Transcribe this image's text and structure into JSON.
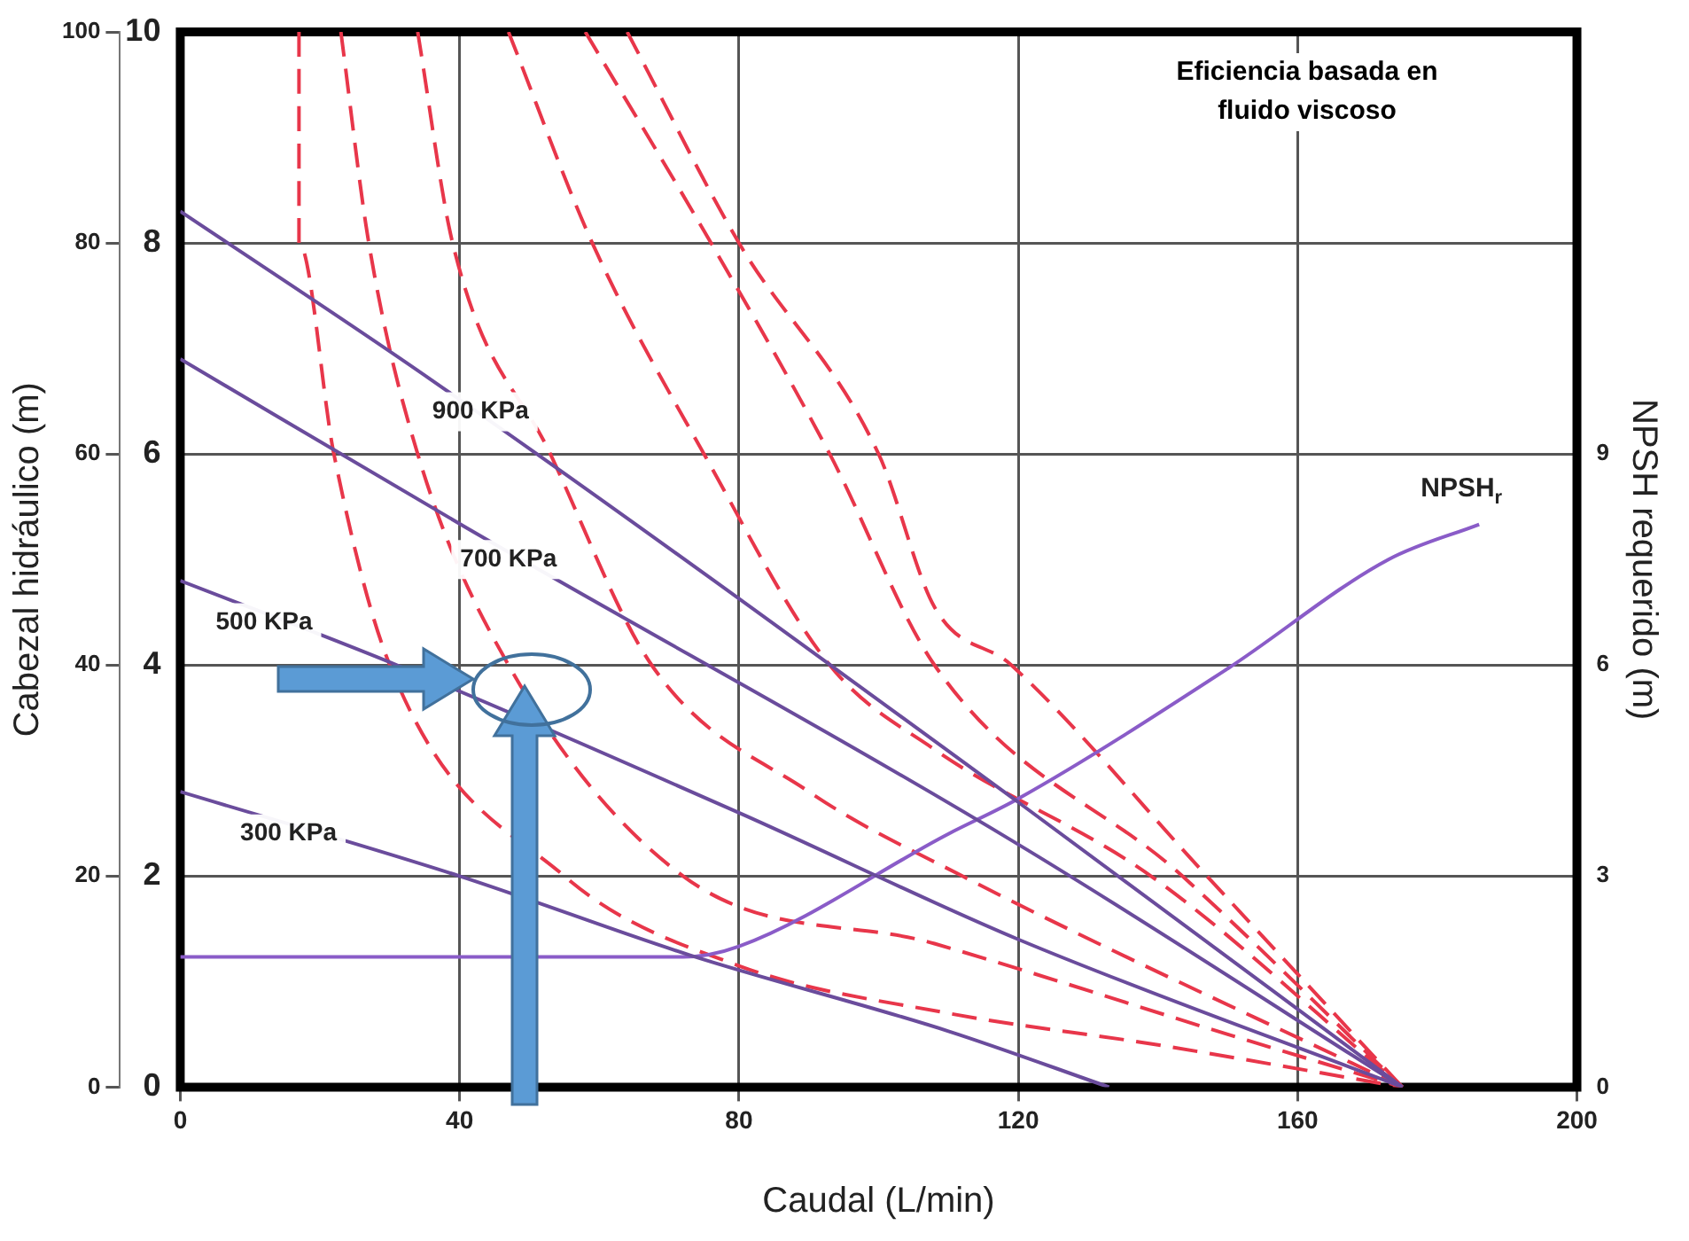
{
  "chart_data": {
    "type": "line",
    "xlabel": "Caudal (L/min)",
    "ylabel": "Cabezal hidráulico (m)",
    "y3label": "NPSH requerido (m)",
    "xlim": [
      0,
      200
    ],
    "xticks": [
      0,
      40,
      80,
      120,
      160,
      200
    ],
    "ylim": [
      0,
      100
    ],
    "yticks": [
      0,
      20,
      40,
      60,
      80,
      100
    ],
    "y2lim": [
      0,
      10
    ],
    "y2ticks": [
      0,
      2,
      4,
      6,
      8,
      10
    ],
    "y3lim": [
      0,
      15
    ],
    "y3ticks": [
      0,
      3,
      6,
      9
    ],
    "grid": true,
    "legend": false,
    "marker": "none",
    "series": [
      {
        "color": "#6a4c9c",
        "line_style": "solid",
        "x": [
          0,
          36,
          120,
          175
        ],
        "values": [
          83,
          67,
          27,
          0
        ]
      },
      {
        "color": "#6a4c9c",
        "line_style": "solid",
        "x": [
          0,
          41,
          120,
          175
        ],
        "values": [
          69,
          53,
          23,
          0
        ]
      },
      {
        "color": "#6a4c9c",
        "line_style": "solid",
        "x": [
          0,
          31,
          80,
          120,
          175
        ],
        "values": [
          48,
          40,
          26,
          14,
          0
        ]
      },
      {
        "color": "#6a4c9c",
        "line_style": "solid",
        "x": [
          0,
          40,
          73,
          110,
          133
        ],
        "values": [
          28,
          20,
          12.5,
          5.3,
          0
        ]
      },
      {
        "name": "NPSH$_{r}$",
        "color": "#8a5cc8",
        "line_style": "solid",
        "axis": "y3",
        "x": [
          0,
          72,
          80,
          110,
          120,
          150,
          173,
          186
        ],
        "values": [
          1.85,
          1.85,
          2.0,
          3.6,
          4.1,
          5.95,
          7.5,
          8.0
        ]
      },
      {
        "color": "#e8364a",
        "line_style": "dashed",
        "x": [
          17,
          17,
          22,
          30,
          55,
          80,
          110,
          140,
          175
        ],
        "values": [
          100,
          80,
          60,
          40,
          20,
          11.5,
          7,
          4,
          0
        ]
      },
      {
        "color": "#e8364a",
        "line_style": "dashed",
        "x": [
          23,
          27,
          34,
          47,
          72,
          108,
          150,
          175
        ],
        "values": [
          100,
          80,
          60,
          40,
          20,
          13.6,
          5,
          0
        ]
      },
      {
        "color": "#e8364a",
        "line_style": "dashed",
        "x": [
          34,
          39,
          53,
          67.5,
          90,
          112,
          175
        ],
        "values": [
          100,
          80,
          60,
          40,
          28,
          20,
          0
        ]
      },
      {
        "color": "#e8364a",
        "line_style": "dashed",
        "x": [
          47,
          59,
          75,
          93,
          108,
          139,
          175
        ],
        "values": [
          100,
          80,
          60,
          40,
          32,
          20,
          0
        ]
      },
      {
        "color": "#e8364a",
        "line_style": "dashed",
        "x": [
          58,
          76,
          93,
          108,
          143.5,
          175
        ],
        "values": [
          100,
          80,
          60,
          40,
          20,
          0
        ]
      },
      {
        "color": "#e8364a",
        "line_style": "dashed",
        "x": [
          64,
          80,
          100,
          108,
          119,
          147,
          175
        ],
        "values": [
          100,
          80,
          60,
          45.5,
          40,
          20,
          0
        ]
      }
    ],
    "annotations": [
      {
        "text": "900 KPa",
        "x": 43,
        "y": 64
      },
      {
        "text": "700 KPa",
        "x": 47,
        "y": 50
      },
      {
        "text": "500 KPa",
        "x": 12,
        "y": 44
      },
      {
        "text": "300 KPa",
        "x": 15.5,
        "y": 24
      },
      "Eficiencia basada en fluido viscoso"
    ]
  }
}
